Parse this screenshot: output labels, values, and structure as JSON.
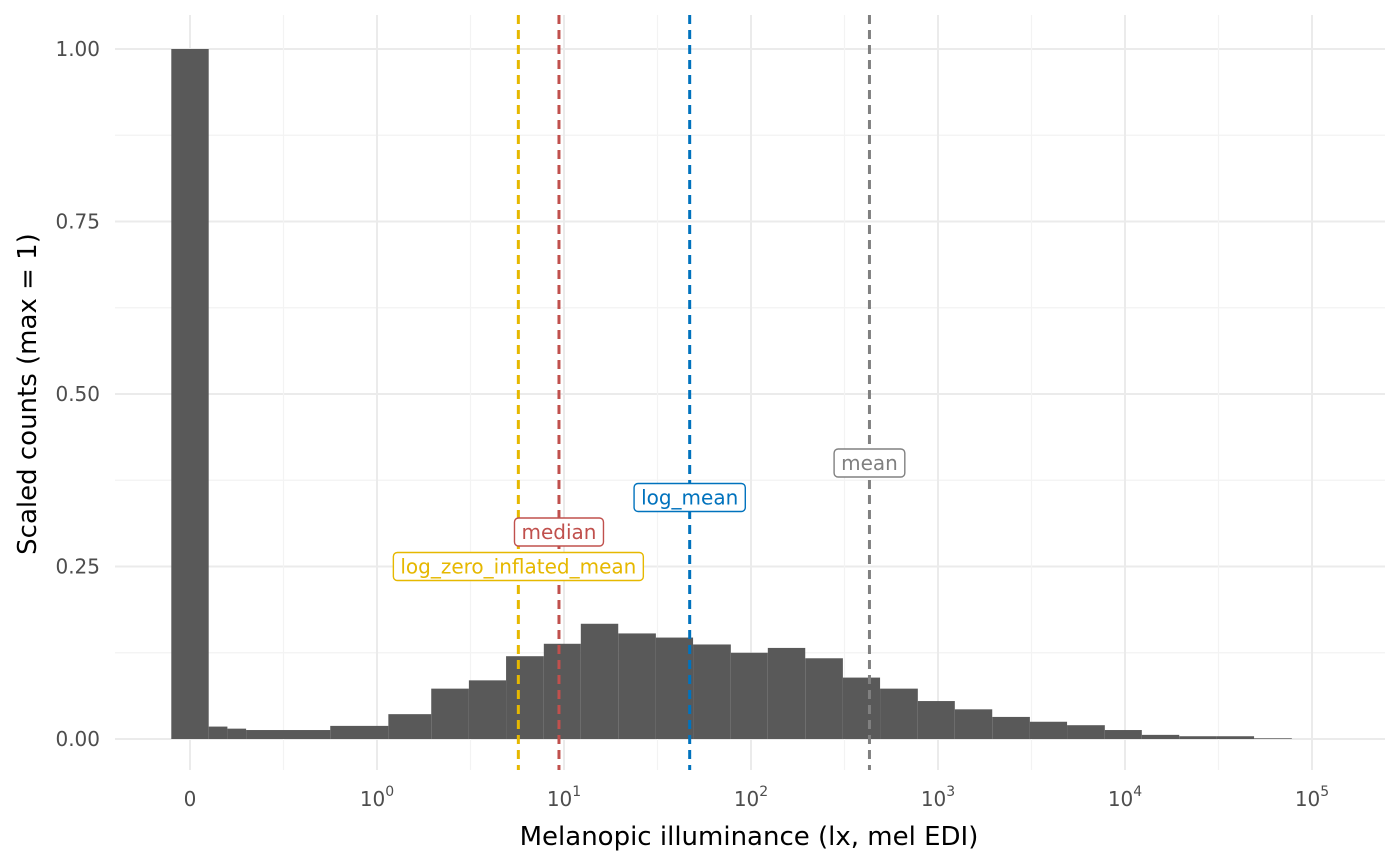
{
  "chart_data": {
    "type": "bar",
    "xlabel": "Melanopic illuminance (lx, mel EDI)",
    "ylabel": "Scaled counts (max = 1)",
    "x_scale": "symlog",
    "ylim": [
      0,
      1.0
    ],
    "y_ticks": [
      "0.00",
      "0.25",
      "0.50",
      "0.75",
      "1.00"
    ],
    "y_tick_values": [
      0,
      0.25,
      0.5,
      0.75,
      1.0
    ],
    "x_ticks": [
      {
        "value": 0,
        "base": "0",
        "exp": ""
      },
      {
        "value": 1,
        "base": "10",
        "exp": "0"
      },
      {
        "value": 10,
        "base": "10",
        "exp": "1"
      },
      {
        "value": 100,
        "base": "10",
        "exp": "2"
      },
      {
        "value": 1000,
        "base": "10",
        "exp": "3"
      },
      {
        "value": 10000,
        "base": "10",
        "exp": "4"
      },
      {
        "value": 100000,
        "base": "10",
        "exp": "5"
      }
    ],
    "grid": true,
    "bins": [
      {
        "x_from": -0.1,
        "x_to": 0.1,
        "value": 1.0
      },
      {
        "x_from": 0.1,
        "x_to": 0.2,
        "value": 0.018
      },
      {
        "x_from": 0.2,
        "x_to": 0.3,
        "value": 0.015
      },
      {
        "x_from": 0.3,
        "x_to": 0.5,
        "value": 0.013
      },
      {
        "x_from": 0.5,
        "x_to": 0.75,
        "value": 0.013
      },
      {
        "x_from": 0.75,
        "x_to": 1.15,
        "value": 0.019
      },
      {
        "x_from": 1.15,
        "x_to": 1.95,
        "value": 0.036
      },
      {
        "x_from": 1.95,
        "x_to": 3.1,
        "value": 0.073
      },
      {
        "x_from": 3.1,
        "x_to": 4.9,
        "value": 0.085
      },
      {
        "x_from": 4.9,
        "x_to": 7.8,
        "value": 0.12
      },
      {
        "x_from": 7.8,
        "x_to": 12.3,
        "value": 0.138
      },
      {
        "x_from": 12.3,
        "x_to": 19.5,
        "value": 0.167
      },
      {
        "x_from": 19.5,
        "x_to": 31,
        "value": 0.153
      },
      {
        "x_from": 31,
        "x_to": 49,
        "value": 0.147
      },
      {
        "x_from": 49,
        "x_to": 78,
        "value": 0.137
      },
      {
        "x_from": 78,
        "x_to": 123,
        "value": 0.125
      },
      {
        "x_from": 123,
        "x_to": 195,
        "value": 0.132
      },
      {
        "x_from": 195,
        "x_to": 310,
        "value": 0.117
      },
      {
        "x_from": 310,
        "x_to": 490,
        "value": 0.089
      },
      {
        "x_from": 490,
        "x_to": 780,
        "value": 0.073
      },
      {
        "x_from": 780,
        "x_to": 1230,
        "value": 0.055
      },
      {
        "x_from": 1230,
        "x_to": 1950,
        "value": 0.043
      },
      {
        "x_from": 1950,
        "x_to": 3100,
        "value": 0.032
      },
      {
        "x_from": 3100,
        "x_to": 4900,
        "value": 0.025
      },
      {
        "x_from": 4900,
        "x_to": 7800,
        "value": 0.02
      },
      {
        "x_from": 7800,
        "x_to": 12300,
        "value": 0.013
      },
      {
        "x_from": 12300,
        "x_to": 19500,
        "value": 0.006
      },
      {
        "x_from": 19500,
        "x_to": 31000,
        "value": 0.004
      },
      {
        "x_from": 31000,
        "x_to": 49000,
        "value": 0.004
      },
      {
        "x_from": 49000,
        "x_to": 78000,
        "value": 0.001
      }
    ],
    "reference_lines": [
      {
        "name": "log_zero_inflated_mean",
        "x": 5.7,
        "color": "#E6B800",
        "label_y": 0.25
      },
      {
        "name": "median",
        "x": 9.4,
        "color": "#C0504D",
        "label_y": 0.3
      },
      {
        "name": "log_mean",
        "x": 47,
        "color": "#0072BD",
        "label_y": 0.35
      },
      {
        "name": "mean",
        "x": 430,
        "color": "#808080",
        "label_y": 0.4
      }
    ]
  }
}
